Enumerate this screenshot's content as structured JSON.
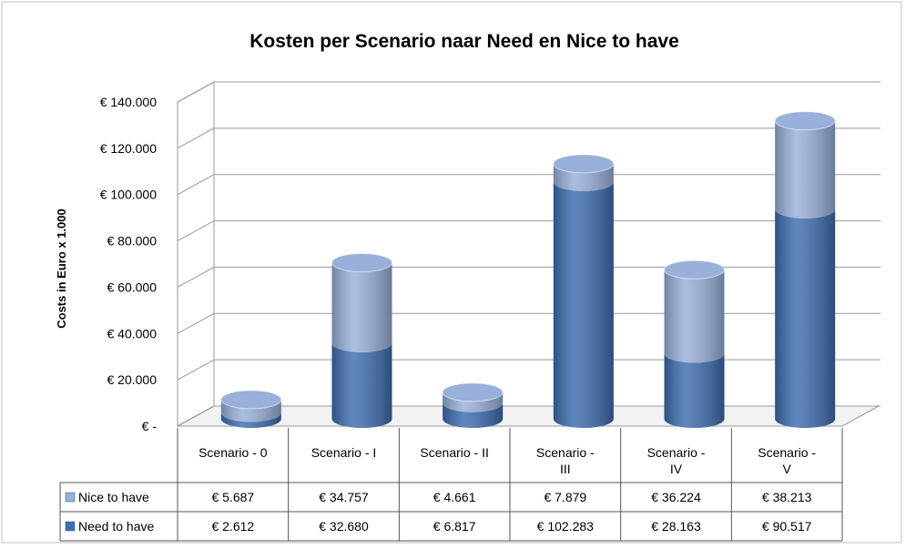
{
  "chart_data": {
    "type": "stacked-cylinder",
    "title": "Kosten per Scenario naar Need en Nice to have",
    "y_axis_label": "Costs in Euro x 1.000",
    "categories": [
      "Scenario - 0",
      "Scenario - I",
      "Scenario - II",
      "Scenario - III",
      "Scenario - IV",
      "Scenario - V"
    ],
    "series": [
      {
        "name": "Need to have",
        "color": "#3d6cb0",
        "values": [
          2612,
          32680,
          6817,
          102283,
          28163,
          90517
        ],
        "value_labels": [
          "€ 2.612",
          "€ 32.680",
          "€ 6.817",
          "€ 102.283",
          "€ 28.163",
          "€ 90.517"
        ]
      },
      {
        "name": "Nice to have",
        "color": "#98b0da",
        "values": [
          5687,
          34757,
          4661,
          7879,
          36224,
          38213
        ],
        "value_labels": [
          "€ 5.687",
          "€ 34.757",
          "€ 4.661",
          "€ 7.879",
          "€ 36.224",
          "€ 38.213"
        ]
      }
    ],
    "ylim": [
      0,
      140000
    ],
    "yticks": [
      {
        "value": 0,
        "label": "€ -"
      },
      {
        "value": 20000,
        "label": "€ 20.000"
      },
      {
        "value": 40000,
        "label": "€ 40.000"
      },
      {
        "value": 60000,
        "label": "€ 60.000"
      },
      {
        "value": 80000,
        "label": "€ 80.000"
      },
      {
        "value": 100000,
        "label": "€ 100.000"
      },
      {
        "value": 120000,
        "label": "€ 120.000"
      },
      {
        "value": 140000,
        "label": "€ 140.000"
      }
    ],
    "grid": true,
    "data_table": true
  }
}
